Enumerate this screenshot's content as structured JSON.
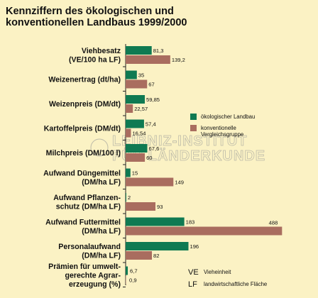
{
  "chart_data": {
    "type": "bar",
    "orientation": "horizontal",
    "title_lines": [
      "Kennziffern des ökologischen und",
      "konventionellen Landbaus 1999/2000"
    ],
    "categories": [
      [
        "Viehbesatz",
        "(VE/100 ha LF)"
      ],
      [
        "Weizenertrag (dt/ha)"
      ],
      [
        "Weizenpreis (DM/dt)"
      ],
      [
        "Kartoffelpreis (DM/dt)"
      ],
      [
        "Milchpreis (DM/100 l)"
      ],
      [
        "Aufwand Düngemittel",
        "(DM/ha LF)"
      ],
      [
        "Aufwand Pflanzen-",
        "schutz (DM/ha LF)"
      ],
      [
        "Aufwand Futtermittel",
        "(DM/ha LF)"
      ],
      [
        "Personalaufwand",
        "(DM/ha LF)"
      ],
      [
        "Prämien für umwelt-",
        "gerechte Agrar-",
        "erzeugung (%)"
      ]
    ],
    "series": [
      {
        "name": "ökologischer Landbau",
        "color": "#0f7a52",
        "values": [
          81.3,
          35,
          59.85,
          57.4,
          67.6,
          15,
          2,
          183,
          196,
          6.7
        ],
        "labels": [
          "81,3",
          "35",
          "59,85",
          "57,4",
          "67,6",
          "15",
          "2",
          "183",
          "196",
          "6,7"
        ]
      },
      {
        "name": "konventionelle Vergleichsgruppe",
        "color": "#a96d5f",
        "values": [
          139.2,
          67,
          22.57,
          16.54,
          60,
          149,
          93,
          488,
          82,
          0.9
        ],
        "labels": [
          "139,2",
          "67",
          "22,57",
          "16,54",
          "60",
          "149",
          "93",
          "488",
          "82",
          "0,9"
        ]
      }
    ],
    "xlim": [
      0,
      500
    ],
    "grid": false,
    "legend_position": "right"
  },
  "abbreviations": [
    {
      "key": "VE",
      "text": "Vieheinheit"
    },
    {
      "key": "LF",
      "text": "landwirtschaftliche Fläche"
    }
  ],
  "watermark_lines": [
    "LEIBNIZ-INSTITUT",
    "FÜR LÄNDERKUNDE"
  ]
}
